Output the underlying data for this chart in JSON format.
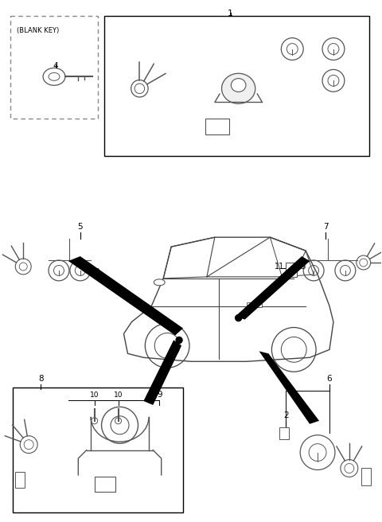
{
  "bg_color": "#ffffff",
  "line_color": "#000000",
  "gray_color": "#555555",
  "fig_width": 4.8,
  "fig_height": 6.56,
  "dpi": 100
}
